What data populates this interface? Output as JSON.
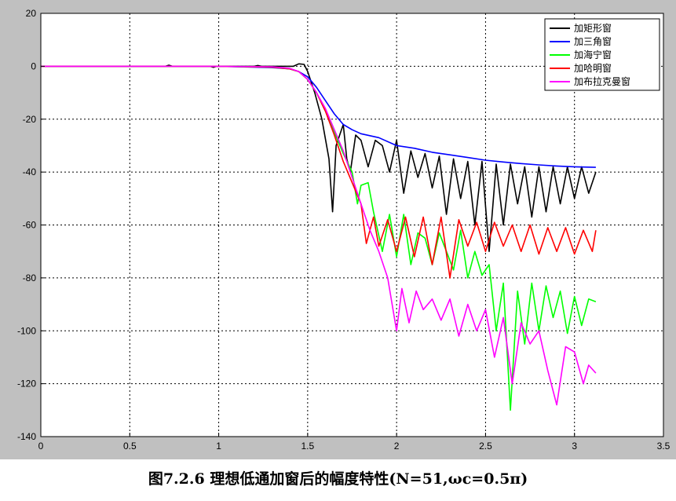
{
  "caption": "图7.2.6 理想低通加窗后的幅度特性(N=51,ωc=0.5π)",
  "chart_data": {
    "type": "line",
    "title": "",
    "xlabel": "",
    "ylabel": "",
    "xlim": [
      0,
      3.5
    ],
    "ylim": [
      -140,
      20
    ],
    "x_ticks": [
      0,
      0.5,
      1,
      1.5,
      2,
      2.5,
      3,
      3.5
    ],
    "x_tick_labels": [
      "0",
      "0.5",
      "1",
      "1.5",
      "2",
      "2.5",
      "3",
      "3.5"
    ],
    "y_ticks": [
      20,
      0,
      -20,
      -40,
      -60,
      -80,
      -100,
      -120,
      -140
    ],
    "y_tick_labels": [
      "20",
      "0",
      "-20",
      "-40",
      "-60",
      "-80",
      "-100",
      "-120",
      "-140"
    ],
    "grid": true,
    "legend_position": "top-right",
    "series": [
      {
        "name": "加矩形窗",
        "color": "#000000",
        "x": [
          0,
          0.5,
          0.7,
          0.72,
          0.74,
          0.95,
          0.97,
          0.99,
          1.2,
          1.22,
          1.24,
          1.3,
          1.42,
          1.45,
          1.48,
          1.5,
          1.54,
          1.58,
          1.62,
          1.64,
          1.66,
          1.7,
          1.72,
          1.74,
          1.77,
          1.8,
          1.84,
          1.88,
          1.92,
          1.96,
          2.0,
          2.04,
          2.08,
          2.12,
          2.16,
          2.2,
          2.24,
          2.28,
          2.32,
          2.36,
          2.4,
          2.44,
          2.48,
          2.52,
          2.56,
          2.6,
          2.64,
          2.68,
          2.72,
          2.76,
          2.8,
          2.84,
          2.88,
          2.92,
          2.96,
          3.0,
          3.04,
          3.08,
          3.12
        ],
        "y": [
          0,
          0,
          0,
          0.4,
          0,
          0,
          -0.4,
          0,
          0,
          0.3,
          0,
          0,
          0,
          0.9,
          0.7,
          -2,
          -10,
          -20,
          -35,
          -55,
          -30,
          -22,
          -35,
          -40,
          -26,
          -28,
          -38,
          -28,
          -30,
          -40,
          -28,
          -48,
          -32,
          -42,
          -33,
          -46,
          -34,
          -56,
          -35,
          -50,
          -36,
          -60,
          -36,
          -70,
          -37,
          -60,
          -37,
          -52,
          -38,
          -57,
          -38,
          -55,
          -38,
          -52,
          -38,
          -50,
          -38,
          -48,
          -40
        ]
      },
      {
        "name": "加三角窗",
        "color": "#0000ff",
        "x": [
          0,
          0.5,
          1.0,
          1.3,
          1.4,
          1.45,
          1.5,
          1.55,
          1.6,
          1.65,
          1.7,
          1.75,
          1.8,
          1.9,
          2.0,
          2.1,
          2.2,
          2.3,
          2.4,
          2.5,
          2.6,
          2.7,
          2.8,
          2.9,
          3.0,
          3.12
        ],
        "y": [
          0,
          0,
          0,
          -0.5,
          -1,
          -2,
          -4,
          -8,
          -13,
          -18,
          -22,
          -24,
          -25.5,
          -27,
          -30,
          -31,
          -32.5,
          -33.5,
          -34.5,
          -35.5,
          -36.2,
          -36.8,
          -37.3,
          -37.7,
          -38,
          -38.2
        ]
      },
      {
        "name": "加海宁窗",
        "color": "#00ff00",
        "x": [
          0,
          0.5,
          1.0,
          1.3,
          1.4,
          1.45,
          1.5,
          1.55,
          1.6,
          1.65,
          1.7,
          1.75,
          1.78,
          1.8,
          1.84,
          1.87,
          1.92,
          1.96,
          2.0,
          2.04,
          2.08,
          2.12,
          2.16,
          2.2,
          2.24,
          2.28,
          2.32,
          2.36,
          2.4,
          2.44,
          2.48,
          2.52,
          2.56,
          2.6,
          2.64,
          2.68,
          2.72,
          2.76,
          2.8,
          2.84,
          2.88,
          2.92,
          2.96,
          3.0,
          3.04,
          3.08,
          3.12
        ],
        "y": [
          0,
          0,
          0,
          -0.3,
          -1,
          -2,
          -5,
          -10,
          -17,
          -25,
          -33,
          -40,
          -52,
          -45,
          -44,
          -55,
          -70,
          -56,
          -72,
          -56,
          -75,
          -63,
          -65,
          -75,
          -63,
          -70,
          -77,
          -62,
          -80,
          -70,
          -79,
          -75,
          -100,
          -82,
          -130,
          -85,
          -105,
          -82,
          -100,
          -83,
          -95,
          -85,
          -101,
          -87,
          -98,
          -88,
          -89
        ]
      },
      {
        "name": "加哈明窗",
        "color": "#ff0000",
        "x": [
          0,
          0.5,
          1.0,
          1.3,
          1.4,
          1.45,
          1.5,
          1.55,
          1.6,
          1.65,
          1.7,
          1.75,
          1.8,
          1.83,
          1.87,
          1.9,
          1.95,
          2.0,
          2.05,
          2.1,
          2.15,
          2.2,
          2.25,
          2.3,
          2.35,
          2.4,
          2.45,
          2.5,
          2.55,
          2.6,
          2.65,
          2.7,
          2.75,
          2.8,
          2.85,
          2.9,
          2.95,
          3.0,
          3.05,
          3.1,
          3.12
        ],
        "y": [
          0,
          0,
          0,
          -0.3,
          -1,
          -2,
          -5,
          -10,
          -17,
          -26,
          -36,
          -44,
          -52,
          -67,
          -57,
          -68,
          -58,
          -70,
          -57,
          -72,
          -57,
          -75,
          -57,
          -80,
          -58,
          -68,
          -59,
          -70,
          -59,
          -68,
          -60,
          -70,
          -60,
          -71,
          -61,
          -70,
          -61,
          -71,
          -62,
          -70,
          -62
        ]
      },
      {
        "name": "加布拉克曼窗",
        "color": "#ff00ff",
        "x": [
          0,
          0.5,
          1.0,
          1.3,
          1.4,
          1.45,
          1.5,
          1.55,
          1.6,
          1.65,
          1.7,
          1.75,
          1.8,
          1.85,
          1.9,
          1.95,
          2.0,
          2.03,
          2.07,
          2.11,
          2.15,
          2.2,
          2.25,
          2.3,
          2.35,
          2.4,
          2.45,
          2.5,
          2.55,
          2.6,
          2.65,
          2.7,
          2.75,
          2.8,
          2.85,
          2.9,
          2.95,
          3.0,
          3.05,
          3.08,
          3.12
        ],
        "y": [
          0,
          0,
          0,
          -0.2,
          -0.8,
          -2,
          -5,
          -10,
          -16,
          -24,
          -32,
          -42,
          -52,
          -62,
          -70,
          -80,
          -100,
          -84,
          -97,
          -85,
          -92,
          -88,
          -96,
          -88,
          -102,
          -90,
          -100,
          -92,
          -110,
          -95,
          -120,
          -97,
          -105,
          -100,
          -115,
          -128,
          -106,
          -108,
          -120,
          -113,
          -116
        ]
      }
    ]
  }
}
